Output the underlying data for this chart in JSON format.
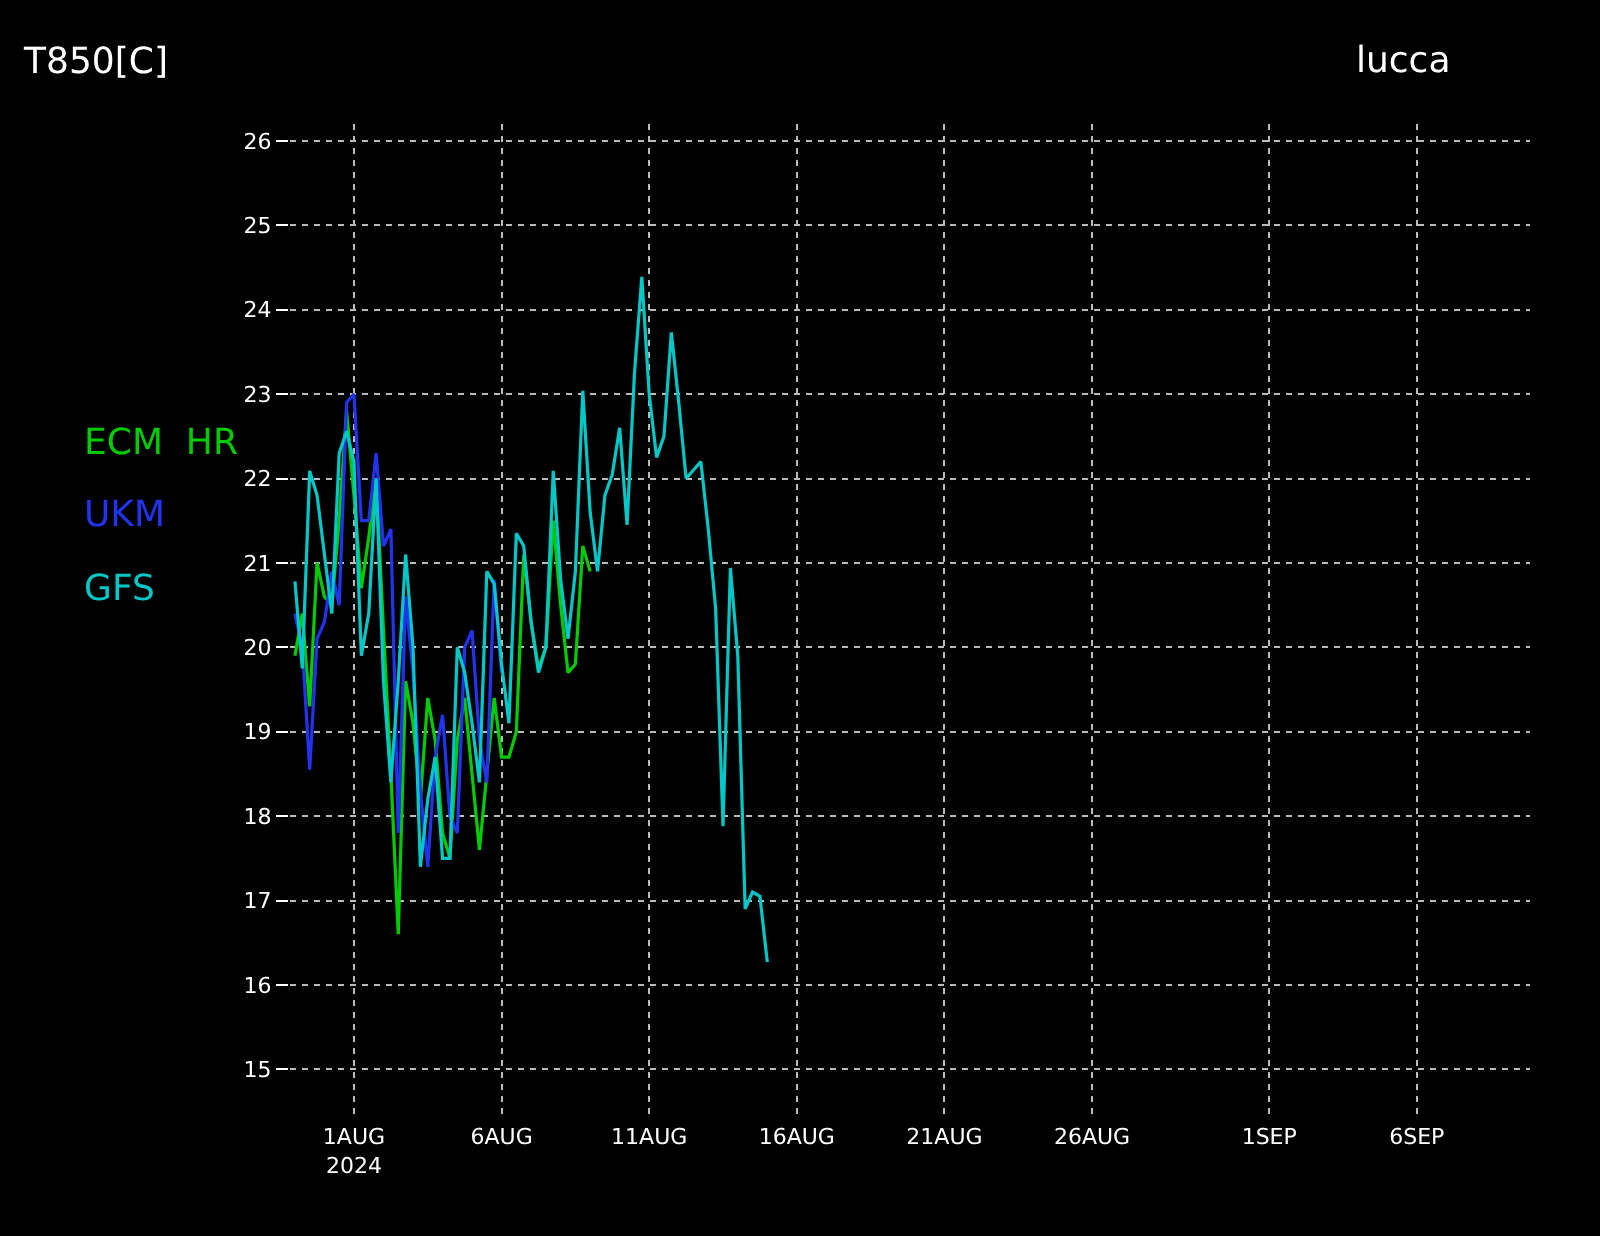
{
  "chart_data": {
    "type": "line",
    "title": "T850[C]",
    "subtitle": "lucca",
    "xlim": [
      "2024-07-29T20:00",
      "2024-09-09T20:00"
    ],
    "xticks": [
      {
        "value": "2024-08-01",
        "label": "1AUG\n2024"
      },
      {
        "value": "2024-08-06",
        "label": "6AUG"
      },
      {
        "value": "2024-08-11",
        "label": "11AUG"
      },
      {
        "value": "2024-08-16",
        "label": "16AUG"
      },
      {
        "value": "2024-08-21",
        "label": "21AUG"
      },
      {
        "value": "2024-08-26",
        "label": "26AUG"
      },
      {
        "value": "2024-09-01",
        "label": "1SEP"
      },
      {
        "value": "2024-09-06",
        "label": "6SEP"
      }
    ],
    "ylim": [
      14.4,
      26.2
    ],
    "yticks": [
      15,
      16,
      17,
      18,
      19,
      20,
      21,
      22,
      23,
      24,
      25,
      26
    ],
    "grid": true,
    "legend": "left",
    "line_style": "solid",
    "marker": "none",
    "series": [
      {
        "name": "ECM  HR",
        "color": "#00cc00",
        "x": [
          "2024-07-30T00:00",
          "2024-07-30T06:00",
          "2024-07-30T12:00",
          "2024-07-30T18:00",
          "2024-07-31T00:00",
          "2024-07-31T06:00",
          "2024-07-31T12:00",
          "2024-07-31T18:00",
          "2024-08-01T00:00",
          "2024-08-01T06:00",
          "2024-08-01T12:00",
          "2024-08-01T18:00",
          "2024-08-02T00:00",
          "2024-08-02T06:00",
          "2024-08-02T12:00",
          "2024-08-02T18:00",
          "2024-08-03T00:00",
          "2024-08-03T06:00",
          "2024-08-03T12:00",
          "2024-08-03T18:00",
          "2024-08-04T00:00",
          "2024-08-04T06:00",
          "2024-08-04T12:00",
          "2024-08-04T18:00",
          "2024-08-05T00:00",
          "2024-08-05T06:00",
          "2024-08-05T12:00",
          "2024-08-05T18:00",
          "2024-08-06T00:00",
          "2024-08-06T06:00",
          "2024-08-06T12:00",
          "2024-08-06T18:00",
          "2024-08-07T00:00",
          "2024-08-07T06:00",
          "2024-08-07T12:00",
          "2024-08-07T18:00",
          "2024-08-08T00:00",
          "2024-08-08T06:00",
          "2024-08-08T12:00",
          "2024-08-08T18:00",
          "2024-08-09T00:00"
        ],
        "values": [
          19.9,
          20.4,
          19.3,
          21.0,
          20.6,
          20.5,
          21.5,
          22.8,
          21.8,
          20.7,
          21.3,
          22.0,
          20.2,
          18.5,
          16.6,
          19.6,
          19.1,
          18.2,
          19.4,
          18.9,
          17.8,
          17.5,
          18.9,
          19.4,
          18.5,
          17.6,
          18.5,
          19.4,
          18.7,
          18.7,
          19.0,
          21.1,
          20.3,
          19.75,
          20.0,
          21.5,
          20.5,
          19.7,
          19.8,
          21.2,
          20.9
        ]
      },
      {
        "name": "UKM",
        "color": "#2233ee",
        "x": [
          "2024-07-30T00:00",
          "2024-07-30T06:00",
          "2024-07-30T12:00",
          "2024-07-30T18:00",
          "2024-07-31T00:00",
          "2024-07-31T06:00",
          "2024-07-31T12:00",
          "2024-07-31T18:00",
          "2024-08-01T00:00",
          "2024-08-01T06:00",
          "2024-08-01T12:00",
          "2024-08-01T18:00",
          "2024-08-02T00:00",
          "2024-08-02T06:00",
          "2024-08-02T12:00",
          "2024-08-02T18:00",
          "2024-08-03T00:00",
          "2024-08-03T06:00",
          "2024-08-03T12:00",
          "2024-08-03T18:00",
          "2024-08-04T00:00",
          "2024-08-04T06:00",
          "2024-08-04T12:00",
          "2024-08-04T18:00",
          "2024-08-05T00:00",
          "2024-08-05T06:00",
          "2024-08-05T12:00",
          "2024-08-05T18:00",
          "2024-08-06T00:00"
        ],
        "values": [
          20.4,
          20.0,
          18.55,
          20.1,
          20.3,
          20.9,
          20.5,
          22.9,
          23.0,
          21.5,
          21.5,
          22.3,
          21.2,
          21.4,
          17.8,
          20.6,
          19.7,
          18.3,
          17.4,
          18.7,
          19.2,
          18.0,
          17.8,
          20.0,
          20.2,
          18.9,
          18.4,
          20.8,
          19.7
        ]
      },
      {
        "name": "GFS",
        "color": "#00c8c8",
        "x": [
          "2024-07-30T00:00",
          "2024-07-30T06:00",
          "2024-07-30T12:00",
          "2024-07-30T18:00",
          "2024-07-31T00:00",
          "2024-07-31T06:00",
          "2024-07-31T12:00",
          "2024-07-31T18:00",
          "2024-08-01T00:00",
          "2024-08-01T06:00",
          "2024-08-01T12:00",
          "2024-08-01T18:00",
          "2024-08-02T00:00",
          "2024-08-02T06:00",
          "2024-08-02T12:00",
          "2024-08-02T18:00",
          "2024-08-03T00:00",
          "2024-08-03T06:00",
          "2024-08-03T12:00",
          "2024-08-03T18:00",
          "2024-08-04T00:00",
          "2024-08-04T06:00",
          "2024-08-04T12:00",
          "2024-08-04T18:00",
          "2024-08-05T00:00",
          "2024-08-05T06:00",
          "2024-08-05T12:00",
          "2024-08-05T18:00",
          "2024-08-06T00:00",
          "2024-08-06T06:00",
          "2024-08-06T12:00",
          "2024-08-06T18:00",
          "2024-08-07T00:00",
          "2024-08-07T06:00",
          "2024-08-07T12:00",
          "2024-08-07T18:00",
          "2024-08-08T00:00",
          "2024-08-08T06:00",
          "2024-08-08T12:00",
          "2024-08-08T18:00",
          "2024-08-09T00:00",
          "2024-08-09T06:00",
          "2024-08-09T12:00",
          "2024-08-09T18:00",
          "2024-08-10T00:00",
          "2024-08-10T06:00",
          "2024-08-10T12:00",
          "2024-08-10T18:00",
          "2024-08-11T00:00",
          "2024-08-11T06:00",
          "2024-08-11T12:00",
          "2024-08-11T18:00",
          "2024-08-12T00:00",
          "2024-08-12T06:00",
          "2024-08-12T12:00",
          "2024-08-12T18:00",
          "2024-08-13T00:00",
          "2024-08-13T06:00",
          "2024-08-13T12:00",
          "2024-08-13T18:00",
          "2024-08-14T00:00",
          "2024-08-14T06:00",
          "2024-08-14T12:00",
          "2024-08-14T18:00",
          "2024-08-15T00:00"
        ],
        "values": [
          20.78,
          19.75,
          22.09,
          21.8,
          21.1,
          20.4,
          22.3,
          22.56,
          22.2,
          19.9,
          20.4,
          22.0,
          19.6,
          18.4,
          19.6,
          21.1,
          20.0,
          17.4,
          18.2,
          18.7,
          17.5,
          17.5,
          20.0,
          19.7,
          19.1,
          18.4,
          20.9,
          20.75,
          19.8,
          19.1,
          21.35,
          21.2,
          20.3,
          19.7,
          20.0,
          22.09,
          20.8,
          20.1,
          20.9,
          23.04,
          21.6,
          20.9,
          21.8,
          22.05,
          22.6,
          21.45,
          23.24,
          24.39,
          23.0,
          22.25,
          22.5,
          23.73,
          22.9,
          22.0,
          22.1,
          22.2,
          21.4,
          20.46,
          17.88,
          20.94,
          19.9,
          16.9,
          17.1,
          17.05,
          16.27
        ]
      }
    ]
  }
}
